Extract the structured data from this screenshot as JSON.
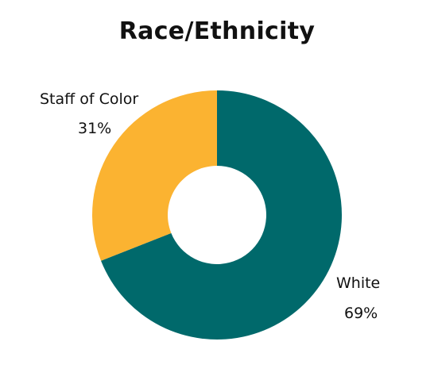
{
  "chart_data": {
    "type": "pie",
    "subtype": "donut",
    "title": "Race/Ethnicity",
    "categories": [
      "White",
      "Staff of Color"
    ],
    "values": [
      69,
      31
    ],
    "value_labels": [
      "69%",
      "31%"
    ],
    "colors": [
      "#00696B",
      "#FBB331"
    ],
    "legend": "none"
  }
}
